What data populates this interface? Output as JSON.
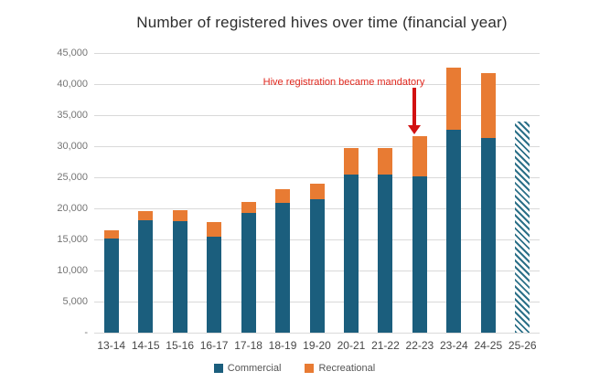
{
  "chart_data": {
    "type": "bar",
    "stacked": true,
    "title": "Number of registered hives over time (financial year)",
    "categories": [
      "13-14",
      "14-15",
      "15-16",
      "16-17",
      "17-18",
      "18-19",
      "19-20",
      "20-21",
      "21-22",
      "22-23",
      "23-24",
      "24-25",
      "25-26"
    ],
    "series": [
      {
        "name": "Commercial",
        "color": "#1b5e7d",
        "values": [
          15200,
          18100,
          18000,
          15400,
          19200,
          20900,
          21500,
          25400,
          25500,
          25100,
          32700,
          31300,
          0
        ]
      },
      {
        "name": "Recreational",
        "color": "#e87b33",
        "values": [
          1300,
          1500,
          1700,
          2400,
          1800,
          2200,
          2400,
          4300,
          4200,
          6500,
          10000,
          10400,
          0
        ]
      }
    ],
    "totals": [
      16500,
      19600,
      19700,
      17800,
      21000,
      23100,
      23900,
      29700,
      29700,
      31600,
      42700,
      41700,
      34000
    ],
    "projection": {
      "category": "25-26",
      "value": 34000,
      "style": "diagonal-hatch",
      "hatch_color": "#2c7088"
    },
    "annotation": {
      "text": "Hive registration became mandatory",
      "text_color": "#e0261c",
      "arrow_color": "#d21111",
      "target_category": "22-23"
    },
    "ylim": [
      0,
      45000
    ],
    "yticks": [
      {
        "value": 45000,
        "label": "45,000"
      },
      {
        "value": 40000,
        "label": "40,000"
      },
      {
        "value": 35000,
        "label": "35,000"
      },
      {
        "value": 30000,
        "label": "30,000"
      },
      {
        "value": 25000,
        "label": "25,000"
      },
      {
        "value": 20000,
        "label": "20,000"
      },
      {
        "value": 15000,
        "label": "15,000"
      },
      {
        "value": 10000,
        "label": "10,000"
      },
      {
        "value": 5000,
        "label": "5,000"
      },
      {
        "value": 0,
        "label": "-"
      }
    ],
    "grid": true,
    "grid_color": "#d9d9d9",
    "legend_position": "bottom",
    "legend": [
      "Commercial",
      "Recreational"
    ]
  }
}
